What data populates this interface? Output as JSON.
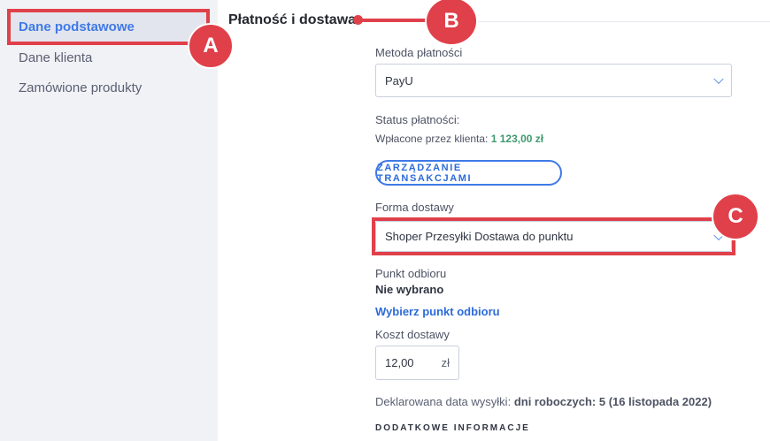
{
  "sidebar": {
    "items": [
      {
        "label": "Dane podstawowe",
        "active": true
      },
      {
        "label": "Dane klienta"
      },
      {
        "label": "Zamówione produkty"
      }
    ]
  },
  "section": {
    "title": "Płatność i dostawa"
  },
  "payment": {
    "method_label": "Metoda płatności",
    "method_value": "PayU",
    "status_label": "Status płatności:",
    "paid_label": "Wpłacone przez klienta:",
    "paid_value": "1 123,00 zł",
    "manage_button": "ZARZĄDZANIE TRANSAKCJAMI"
  },
  "delivery": {
    "form_label": "Forma dostawy",
    "form_value": "Shoper Przesyłki Dostawa do punktu",
    "pickup_label": "Punkt odbioru",
    "pickup_value": "Nie wybrano",
    "pickup_link": "Wybierz punkt odbioru",
    "cost_label": "Koszt dostawy",
    "cost_value": "12,00",
    "cost_unit": "zł",
    "declared_label": "Deklarowana data wysyłki:",
    "declared_value": "dni roboczych: 5 (16 listopada 2022)",
    "additional_heading": "DODATKOWE INFORMACJE"
  },
  "annotations": {
    "a": "A",
    "b": "B",
    "c": "C"
  },
  "colors": {
    "accent": "#3f7ae6",
    "highlight": "#e0404a",
    "paid": "#3f9a6e"
  }
}
